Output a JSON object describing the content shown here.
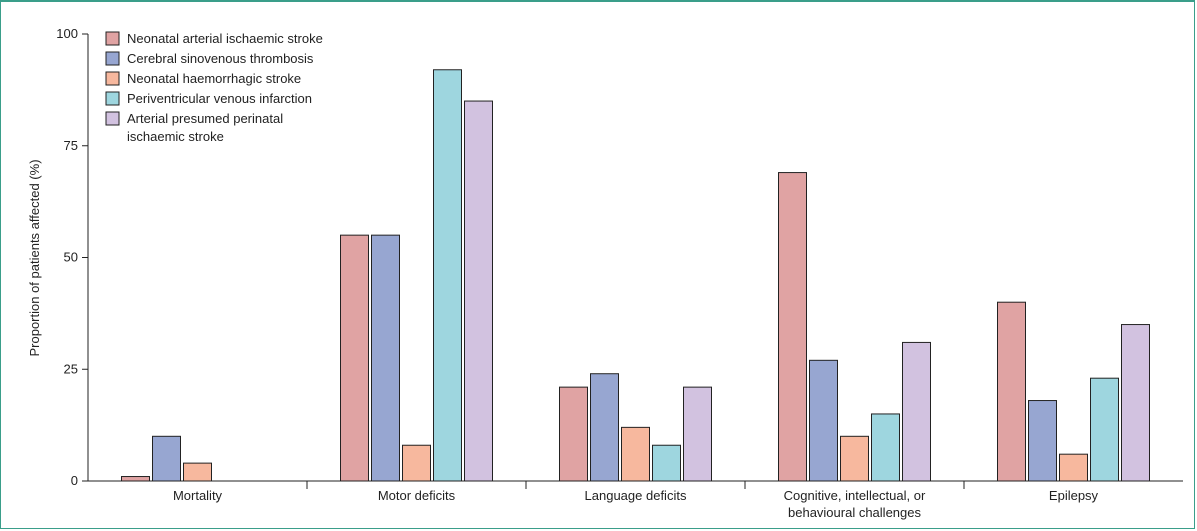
{
  "chart_data": {
    "type": "bar",
    "title": "",
    "xlabel": "",
    "ylabel": "Proportion of patients affected (%)",
    "ylim": [
      0,
      100
    ],
    "yticks": [
      0,
      25,
      50,
      75,
      100
    ],
    "categories": [
      [
        "Mortality"
      ],
      [
        "Motor deficits"
      ],
      [
        "Language deficits"
      ],
      [
        "Cognitive, intellectual, or",
        "behavioural challenges"
      ],
      [
        "Epilepsy"
      ]
    ],
    "series": [
      {
        "name": "Neonatal arterial ischaemic stroke",
        "color": "#e0a3a3",
        "values": [
          1,
          55,
          21,
          69,
          40
        ]
      },
      {
        "name": "Cerebral sinovenous thrombosis",
        "color": "#97a6d1",
        "values": [
          10,
          55,
          24,
          27,
          18
        ]
      },
      {
        "name": "Neonatal haemorrhagic stroke",
        "color": "#f7b89e",
        "values": [
          4,
          8,
          12,
          10,
          6
        ]
      },
      {
        "name": "Periventricular venous infarction",
        "color": "#9ed6df",
        "values": [
          null,
          92,
          8,
          15,
          23
        ]
      },
      {
        "name": "Arterial presumed perinatal ischaemic stroke",
        "name_lines": [
          "Arterial presumed perinatal",
          "ischaemic stroke"
        ],
        "color": "#d2c2e0",
        "values": [
          null,
          85,
          21,
          31,
          35
        ]
      }
    ],
    "legend_position": "top-left",
    "grid": false
  }
}
